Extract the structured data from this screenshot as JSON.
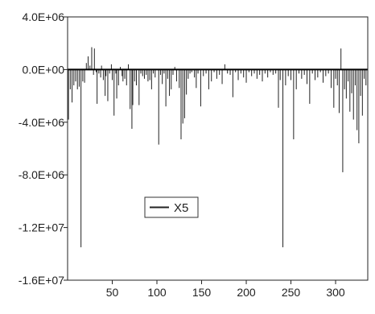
{
  "chart_data": {
    "type": "bar",
    "title": "",
    "xlabel": "",
    "ylabel": "",
    "xlim": [
      0,
      336
    ],
    "ylim": [
      -16000000,
      4000000
    ],
    "x_ticks": [
      50,
      100,
      150,
      200,
      250,
      300
    ],
    "x_tick_labels": [
      "50",
      "100",
      "150",
      "200",
      "250",
      "300"
    ],
    "y_ticks": [
      4000000,
      0,
      -4000000,
      -8000000,
      -12000000,
      -16000000
    ],
    "y_tick_labels": [
      "4.0E+06",
      "0.0E+00",
      "-4.0E+06",
      "-8.0E+06",
      "-1.2E+07",
      "-1.6E+07"
    ],
    "grid": false,
    "legend_position": "center-left",
    "series": [
      {
        "name": "X5",
        "color": "#222222",
        "points": [
          [
            1,
            -3800000
          ],
          [
            3,
            -1500000
          ],
          [
            5,
            -2500000
          ],
          [
            7,
            -1200000
          ],
          [
            9,
            -900000
          ],
          [
            11,
            -1500000
          ],
          [
            13,
            -1300000
          ],
          [
            15,
            -13500000
          ],
          [
            17,
            -900000
          ],
          [
            19,
            -1000000
          ],
          [
            21,
            500000
          ],
          [
            23,
            1000000
          ],
          [
            25,
            300000
          ],
          [
            27,
            1700000
          ],
          [
            29,
            -400000
          ],
          [
            30,
            1600000
          ],
          [
            32,
            -200000
          ],
          [
            33,
            -2600000
          ],
          [
            35,
            -300000
          ],
          [
            37,
            -600000
          ],
          [
            38,
            300000
          ],
          [
            40,
            -800000
          ],
          [
            42,
            -2000000
          ],
          [
            43,
            -500000
          ],
          [
            45,
            -2400000
          ],
          [
            47,
            -300000
          ],
          [
            49,
            400000
          ],
          [
            50,
            -800000
          ],
          [
            52,
            -3500000
          ],
          [
            54,
            -300000
          ],
          [
            55,
            -2200000
          ],
          [
            57,
            -1200000
          ],
          [
            59,
            200000
          ],
          [
            61,
            -500000
          ],
          [
            62,
            -900000
          ],
          [
            64,
            -700000
          ],
          [
            66,
            -1200000
          ],
          [
            68,
            400000
          ],
          [
            70,
            -3000000
          ],
          [
            72,
            -4500000
          ],
          [
            73,
            -2700000
          ],
          [
            75,
            -900000
          ],
          [
            77,
            -1200000
          ],
          [
            80,
            -2700000
          ],
          [
            82,
            -300000
          ],
          [
            84,
            -500000
          ],
          [
            86,
            -700000
          ],
          [
            88,
            -400000
          ],
          [
            90,
            -900000
          ],
          [
            92,
            -800000
          ],
          [
            94,
            -1500000
          ],
          [
            96,
            -300000
          ],
          [
            98,
            -600000
          ],
          [
            102,
            -5700000
          ],
          [
            104,
            -400000
          ],
          [
            106,
            -1100000
          ],
          [
            108,
            -300000
          ],
          [
            110,
            -2800000
          ],
          [
            112,
            -700000
          ],
          [
            114,
            -2000000
          ],
          [
            116,
            -1500000
          ],
          [
            118,
            -400000
          ],
          [
            120,
            200000
          ],
          [
            122,
            -900000
          ],
          [
            125,
            -1400000
          ],
          [
            127,
            -5300000
          ],
          [
            129,
            -4100000
          ],
          [
            131,
            -3700000
          ],
          [
            133,
            -1900000
          ],
          [
            135,
            -700000
          ],
          [
            137,
            -300000
          ],
          [
            139,
            -200000
          ],
          [
            142,
            -600000
          ],
          [
            144,
            -1400000
          ],
          [
            146,
            -300000
          ],
          [
            149,
            -2800000
          ],
          [
            152,
            -500000
          ],
          [
            155,
            -300000
          ],
          [
            158,
            -1500000
          ],
          [
            161,
            -900000
          ],
          [
            164,
            -200000
          ],
          [
            167,
            -700000
          ],
          [
            170,
            -400000
          ],
          [
            173,
            -1100000
          ],
          [
            176,
            400000
          ],
          [
            179,
            -300000
          ],
          [
            182,
            -400000
          ],
          [
            185,
            -2100000
          ],
          [
            188,
            -200000
          ],
          [
            191,
            -800000
          ],
          [
            194,
            -300000
          ],
          [
            197,
            -600000
          ],
          [
            200,
            -1000000
          ],
          [
            203,
            -200000
          ],
          [
            206,
            -500000
          ],
          [
            209,
            -300000
          ],
          [
            212,
            -700000
          ],
          [
            215,
            -400000
          ],
          [
            218,
            -900000
          ],
          [
            221,
            -300000
          ],
          [
            224,
            -600000
          ],
          [
            227,
            -200000
          ],
          [
            230,
            -400000
          ],
          [
            233,
            -300000
          ],
          [
            236,
            -2900000
          ],
          [
            238,
            -800000
          ],
          [
            241,
            -13500000
          ],
          [
            244,
            -1200000
          ],
          [
            247,
            -500000
          ],
          [
            250,
            -800000
          ],
          [
            253,
            -5300000
          ],
          [
            256,
            -1500000
          ],
          [
            259,
            -300000
          ],
          [
            262,
            -700000
          ],
          [
            265,
            -400000
          ],
          [
            268,
            -1100000
          ],
          [
            271,
            -2600000
          ],
          [
            274,
            -300000
          ],
          [
            277,
            -800000
          ],
          [
            280,
            -600000
          ],
          [
            283,
            -200000
          ],
          [
            286,
            -1000000
          ],
          [
            289,
            -500000
          ],
          [
            292,
            -300000
          ],
          [
            295,
            -1400000
          ],
          [
            298,
            -2900000
          ],
          [
            300,
            -700000
          ],
          [
            302,
            -1200000
          ],
          [
            304,
            -3300000
          ],
          [
            306,
            1600000
          ],
          [
            308,
            -7800000
          ],
          [
            310,
            -1500000
          ],
          [
            312,
            -2200000
          ],
          [
            314,
            -900000
          ],
          [
            316,
            -3200000
          ],
          [
            318,
            -1800000
          ],
          [
            320,
            -3800000
          ],
          [
            322,
            -1200000
          ],
          [
            324,
            -4600000
          ],
          [
            326,
            -5600000
          ],
          [
            328,
            -2000000
          ],
          [
            330,
            -3500000
          ],
          [
            332,
            -700000
          ],
          [
            334,
            -1200000
          ]
        ]
      }
    ]
  }
}
